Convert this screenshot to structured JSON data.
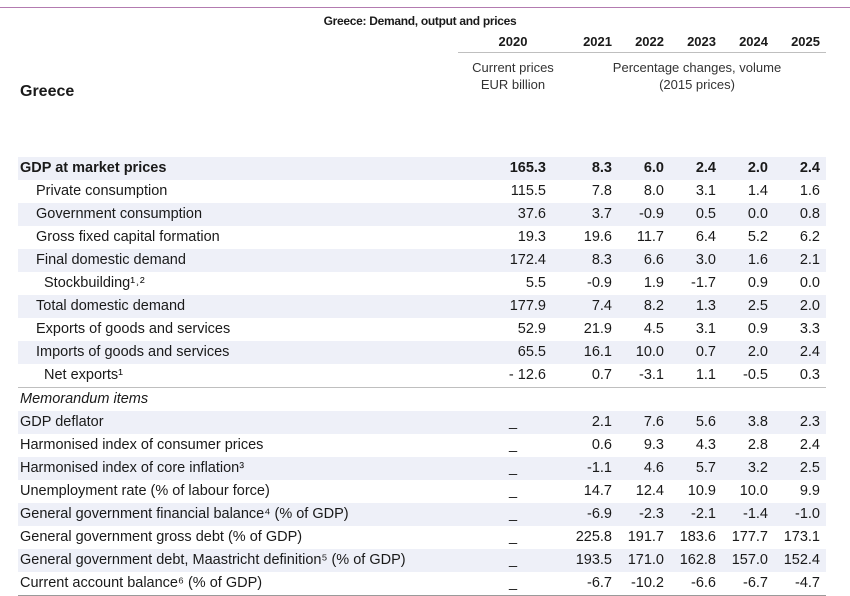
{
  "caption": "Greece: Demand, output and prices",
  "country": "Greece",
  "years": [
    "2020",
    "2021",
    "2022",
    "2023",
    "2024",
    "2025"
  ],
  "units": {
    "base_line1": "Current prices",
    "base_line2": "EUR billion",
    "pct_line1": "Percentage changes, volume",
    "pct_line2": "(2015 prices)"
  },
  "rows": [
    {
      "label": "GDP at market prices",
      "indent": 0,
      "bold": true,
      "shade": true,
      "values": [
        "165.3",
        "8.3",
        "6.0",
        "2.4",
        "2.0",
        "2.4"
      ]
    },
    {
      "label": "Private consumption",
      "indent": 1,
      "shade": false,
      "values": [
        "115.5",
        "7.8",
        "8.0",
        "3.1",
        "1.4",
        "1.6"
      ]
    },
    {
      "label": "Government consumption",
      "indent": 1,
      "shade": true,
      "values": [
        "37.6",
        "3.7",
        "-0.9",
        "0.5",
        "0.0",
        "0.8"
      ]
    },
    {
      "label": "Gross fixed capital formation",
      "indent": 1,
      "shade": false,
      "values": [
        "19.3",
        "19.6",
        "11.7",
        "6.4",
        "5.2",
        "6.2"
      ]
    },
    {
      "label": "Final domestic demand",
      "indent": 1,
      "shade": true,
      "values": [
        "172.4",
        "8.3",
        "6.6",
        "3.0",
        "1.6",
        "2.1"
      ]
    },
    {
      "label": "Stockbuilding¹˒²",
      "indent": 2,
      "shade": false,
      "values": [
        "5.5",
        "-0.9",
        "1.9",
        "-1.7",
        "0.9",
        "0.0"
      ]
    },
    {
      "label": "Total domestic demand",
      "indent": 1,
      "shade": true,
      "values": [
        "177.9",
        "7.4",
        "8.2",
        "1.3",
        "2.5",
        "2.0"
      ]
    },
    {
      "label": "Exports of goods and services",
      "indent": 1,
      "shade": false,
      "values": [
        "52.9",
        "21.9",
        "4.5",
        "3.1",
        "0.9",
        "3.3"
      ]
    },
    {
      "label": "Imports of goods and services",
      "indent": 1,
      "shade": true,
      "values": [
        "65.5",
        "16.1",
        "10.0",
        "0.7",
        "2.0",
        "2.4"
      ]
    },
    {
      "label": "Net exports¹",
      "indent": 2,
      "shade": false,
      "values": [
        "- 12.6",
        "0.7",
        "-3.1",
        "1.1",
        "-0.5",
        "0.3"
      ]
    }
  ],
  "memo_label": "Memorandum items",
  "memo_rows": [
    {
      "label": "GDP deflator",
      "shade": true,
      "values": [
        "_",
        "2.1",
        "7.6",
        "5.6",
        "3.8",
        "2.3"
      ]
    },
    {
      "label": "Harmonised index of consumer prices",
      "shade": false,
      "values": [
        "_",
        "0.6",
        "9.3",
        "4.3",
        "2.8",
        "2.4"
      ]
    },
    {
      "label": "Harmonised index of core inflation³",
      "shade": true,
      "values": [
        "_",
        "-1.1",
        "4.6",
        "5.7",
        "3.2",
        "2.5"
      ]
    },
    {
      "label": "Unemployment rate (% of labour force)",
      "shade": false,
      "values": [
        "_",
        "14.7",
        "12.4",
        "10.9",
        "10.0",
        "9.9"
      ]
    },
    {
      "label": "General government financial balance⁴ (% of GDP)",
      "shade": true,
      "values": [
        "_",
        "-6.9",
        "-2.3",
        "-2.1",
        "-1.4",
        "-1.0"
      ]
    },
    {
      "label": "General government gross debt (% of GDP)",
      "shade": false,
      "values": [
        "_",
        "225.8",
        "191.7",
        "183.6",
        "177.7",
        "173.1"
      ]
    },
    {
      "label": "General government debt, Maastricht definition⁵ (% of GDP)",
      "shade": true,
      "values": [
        "_",
        "193.5",
        "171.0",
        "162.8",
        "157.0",
        "152.4"
      ]
    },
    {
      "label": "Current account balance⁶ (% of GDP)",
      "shade": false,
      "values": [
        "_",
        "-6.7",
        "-10.2",
        "-6.6",
        "-6.7",
        "-4.7"
      ]
    }
  ]
}
